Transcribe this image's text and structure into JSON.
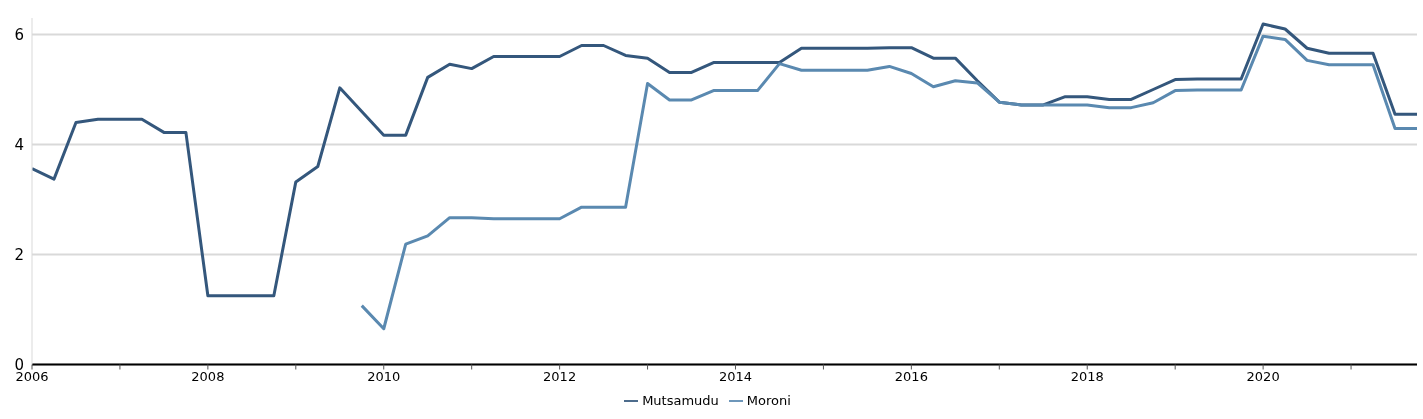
{
  "chart_data": {
    "type": "line",
    "x": [
      2006,
      2006.25,
      2006.5,
      2006.75,
      2007,
      2007.25,
      2007.5,
      2007.75,
      2008,
      2008.25,
      2008.5,
      2008.75,
      2009,
      2009.25,
      2009.5,
      2009.75,
      2010,
      2010.25,
      2010.5,
      2010.75,
      2011,
      2011.25,
      2011.5,
      2011.75,
      2012,
      2012.25,
      2012.5,
      2012.75,
      2013,
      2013.25,
      2013.5,
      2013.75,
      2014,
      2014.25,
      2014.5,
      2014.75,
      2015,
      2015.25,
      2015.5,
      2015.75,
      2016,
      2016.25,
      2016.5,
      2016.75,
      2017,
      2017.25,
      2017.5,
      2017.75,
      2018,
      2018.25,
      2018.5,
      2018.75,
      2019,
      2019.25,
      2019.5,
      2019.75,
      2020,
      2020.25,
      2020.5,
      2020.75,
      2021,
      2021.25,
      2021.5,
      2021.75
    ],
    "series": [
      {
        "name": "Mutsamudu",
        "color": "#34577c",
        "values": [
          3.56,
          3.37,
          4.4,
          4.46,
          4.46,
          4.46,
          4.22,
          4.22,
          1.25,
          1.25,
          1.25,
          1.25,
          3.32,
          3.6,
          5.03,
          4.6,
          4.17,
          4.17,
          5.22,
          5.46,
          5.38,
          5.6,
          5.6,
          5.6,
          5.6,
          5.8,
          5.8,
          5.62,
          5.57,
          5.31,
          5.31,
          5.49,
          5.49,
          5.49,
          5.49,
          5.75,
          5.75,
          5.75,
          5.75,
          5.76,
          5.76,
          5.57,
          5.57,
          5.16,
          4.77,
          4.72,
          4.72,
          4.87,
          4.87,
          4.82,
          4.82,
          5.0,
          5.18,
          5.19,
          5.19,
          5.19,
          6.19,
          6.1,
          5.75,
          5.66,
          5.66,
          5.66,
          4.55,
          4.55
        ]
      },
      {
        "name": "Moroni",
        "color": "#5a89b0",
        "values": [
          null,
          null,
          null,
          null,
          null,
          null,
          null,
          null,
          null,
          null,
          null,
          null,
          null,
          null,
          null,
          1.07,
          0.65,
          2.19,
          2.34,
          2.67,
          2.67,
          2.65,
          2.65,
          2.65,
          2.65,
          2.86,
          2.86,
          2.86,
          5.11,
          4.81,
          4.81,
          4.98,
          4.98,
          4.98,
          5.47,
          5.35,
          5.35,
          5.35,
          5.35,
          5.42,
          5.29,
          5.05,
          5.16,
          5.12,
          4.77,
          4.72,
          4.72,
          4.72,
          4.72,
          4.67,
          4.67,
          4.76,
          4.98,
          4.99,
          4.99,
          4.99,
          5.97,
          5.91,
          5.53,
          5.45,
          5.45,
          5.45,
          4.29,
          4.29
        ]
      }
    ],
    "xlim": [
      2006,
      2021.75
    ],
    "xticks": [
      2006,
      {
        "value": 2007,
        "label": null
      },
      2008,
      {
        "value": 2009,
        "label": null
      },
      2010,
      {
        "value": 2011,
        "label": null
      },
      2012,
      {
        "value": 2013,
        "label": null
      },
      2014,
      {
        "value": 2015,
        "label": null
      },
      2016,
      {
        "value": 2017,
        "label": null
      },
      2018,
      {
        "value": 2019,
        "label": null
      },
      2020,
      {
        "value": 2021,
        "label": null
      }
    ],
    "ylim": [
      0,
      6.3
    ],
    "yticks": [
      0,
      2,
      4,
      6
    ],
    "grid": "y",
    "legend": "bottom",
    "marker": "none",
    "line_style": "solid"
  }
}
